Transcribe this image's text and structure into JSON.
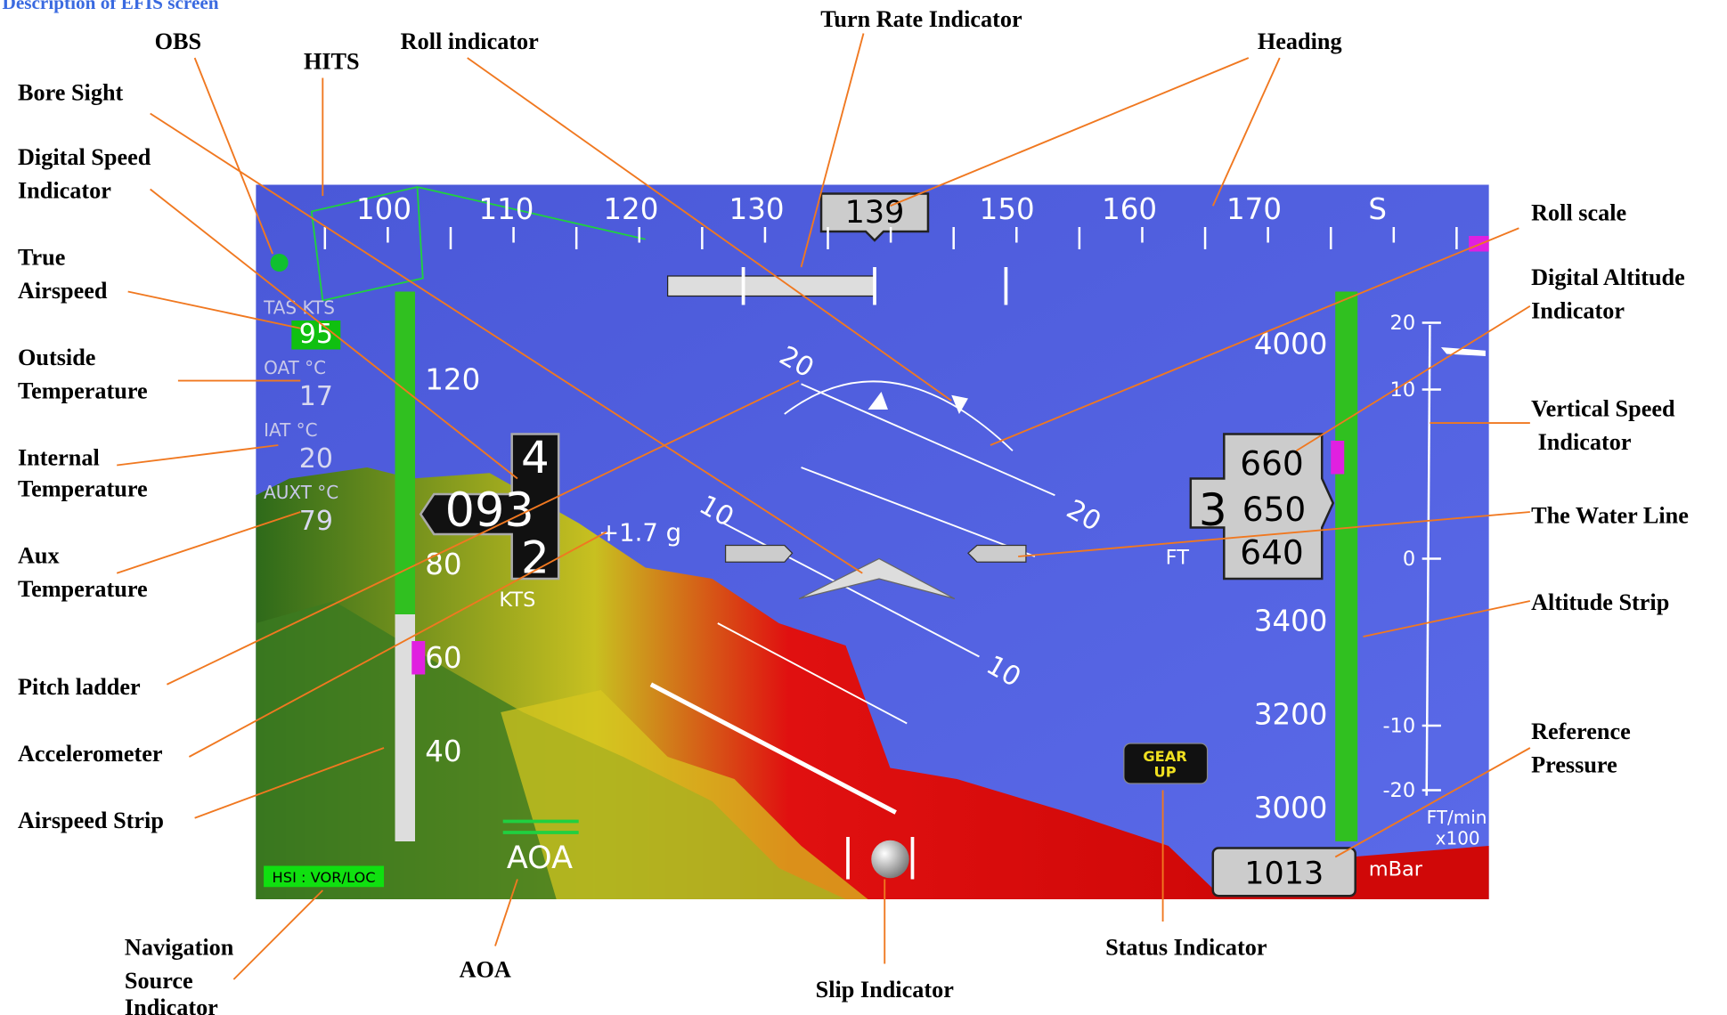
{
  "title": "Description of EFIS screen",
  "callouts": [
    [
      "OBS"
    ],
    [
      "HITS"
    ],
    [
      "Roll indicator"
    ],
    [
      "Turn Rate Indicator"
    ],
    [
      "Heading"
    ],
    [
      "Bore Sight"
    ],
    [
      "Digital Speed",
      "Indicator"
    ],
    [
      "True",
      "Airspeed"
    ],
    [
      "Outside",
      "Temperature"
    ],
    [
      "Internal",
      "Temperature"
    ],
    [
      "Aux",
      "Temperature"
    ],
    [
      "Pitch ladder"
    ],
    [
      "Accelerometer"
    ],
    [
      "Airspeed Strip"
    ],
    [
      "Navigation",
      "Source",
      "Indicator"
    ],
    [
      "AOA"
    ],
    [
      "Slip Indicator"
    ],
    [
      "Status Indicator"
    ],
    [
      "Reference",
      "Pressure"
    ],
    [
      "Altitude Strip"
    ],
    [
      "The Water Line"
    ],
    [
      "Vertical Speed",
      "Indicator"
    ],
    [
      "Digital Altitude",
      "Indicator"
    ],
    [
      "Roll scale"
    ]
  ],
  "screen": {
    "heading": {
      "ticks": [
        "100",
        "110",
        "120",
        "130",
        "150",
        "160",
        "170",
        "S"
      ],
      "current": "139"
    },
    "speed": {
      "ticks": [
        "120",
        "80",
        "60",
        "40"
      ],
      "top": "4",
      "digital": "093",
      "bottom": "2",
      "unit": "KTS"
    },
    "info": [
      {
        "label": "TAS  KTS",
        "value": "95"
      },
      {
        "label": "OAT  °C",
        "value": "17"
      },
      {
        "label": "IAT  °C",
        "value": "20"
      },
      {
        "label": "AUXT  °C",
        "value": "79"
      }
    ],
    "altitude": {
      "ticks": [
        "4000",
        "3400",
        "3200",
        "3000"
      ],
      "upper": "660",
      "lead": "3",
      "middle": "650",
      "lower": "640",
      "unit": "FT"
    },
    "vsi": {
      "ticks": [
        "20",
        "10",
        "0",
        "-10",
        "-20"
      ],
      "unit": "FT/min",
      "scale": "x100"
    },
    "pressure": {
      "value": "1013",
      "unit": "mBar"
    },
    "pitch": [
      "20",
      "20",
      "10",
      "10"
    ],
    "g": "+1.7 g",
    "gear": [
      "GEAR",
      "UP"
    ],
    "aoa": "AOA",
    "nav": "HSI : VOR/LOC"
  }
}
